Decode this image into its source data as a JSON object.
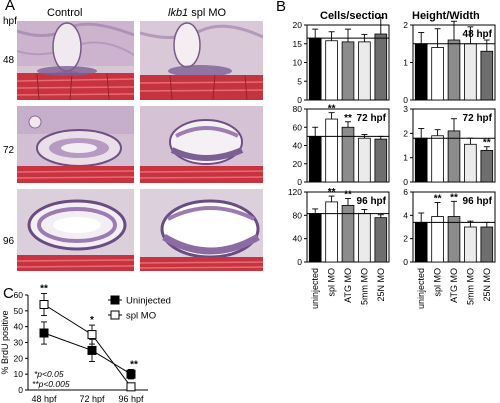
{
  "panel_a": {
    "letter": "A",
    "col_control": "Control",
    "col_mo_gene": "lkb1",
    "col_mo_rest": "spl MO",
    "row_unit": "hpf",
    "rows": [
      "48",
      "72",
      "96"
    ]
  },
  "panel_b": {
    "letter": "B",
    "col_left_title": "Cells/section",
    "col_right_title": "Height/Width",
    "categories": [
      "uninjected",
      "spl MO",
      "ATG MO",
      "5mm MO",
      "25N MO"
    ]
  },
  "panel_c": {
    "letter": "C",
    "notes": [
      "*p<0.05",
      "**p<0.005"
    ]
  },
  "chart_data": [
    {
      "type": "bar",
      "panel": "B",
      "label": "",
      "categories": [
        "uninjected",
        "spl MO",
        "ATG MO",
        "5mm MO",
        "25N MO"
      ],
      "values": [
        16.5,
        15.8,
        15.5,
        15.5,
        17.6
      ],
      "errors": [
        2.4,
        2.4,
        3.4,
        2.0,
        4.4
      ],
      "stars": [
        "",
        "",
        "",
        "",
        ""
      ],
      "ylim": [
        0,
        20
      ],
      "yticks": [
        0,
        5,
        10,
        15,
        20
      ],
      "baseline": 16.5,
      "grid": false
    },
    {
      "type": "bar",
      "panel": "B",
      "label": "48 hpf",
      "categories": [
        "uninjected",
        "spl MO",
        "ATG MO",
        "5mm MO",
        "25N MO"
      ],
      "values": [
        1.5,
        1.4,
        1.6,
        1.5,
        1.3
      ],
      "errors": [
        0.3,
        0.5,
        0.5,
        0.45,
        0.3
      ],
      "stars": [
        "",
        "",
        "",
        "",
        ""
      ],
      "ylim": [
        0,
        2
      ],
      "yticks": [
        0,
        1,
        2
      ],
      "baseline": 1.5,
      "grid": false
    },
    {
      "type": "bar",
      "panel": "B",
      "label": "72 hpf",
      "categories": [
        "uninjected",
        "spl MO",
        "ATG MO",
        "5mm MO",
        "25N MO"
      ],
      "values": [
        50,
        69,
        60,
        48,
        47
      ],
      "errors": [
        10,
        7,
        6,
        4,
        3
      ],
      "stars": [
        "",
        "**",
        "**",
        "",
        ""
      ],
      "ylim": [
        0,
        80
      ],
      "yticks": [
        0,
        20,
        40,
        60,
        80
      ],
      "baseline": 50,
      "grid": false
    },
    {
      "type": "bar",
      "panel": "B",
      "label": "72 hpf",
      "categories": [
        "uninjected",
        "spl MO",
        "ATG MO",
        "5mm MO",
        "25N MO"
      ],
      "values": [
        1.8,
        1.9,
        2.1,
        1.55,
        1.3
      ],
      "errors": [
        0.4,
        0.25,
        0.5,
        0.25,
        0.15
      ],
      "stars": [
        "",
        "",
        "",
        "",
        "**"
      ],
      "ylim": [
        0,
        3
      ],
      "yticks": [
        0,
        1,
        2,
        3
      ],
      "baseline": 1.8,
      "grid": false
    },
    {
      "type": "bar",
      "panel": "B",
      "label": "96 hpf",
      "categories": [
        "uninjected",
        "spl MO",
        "ATG MO",
        "5mm MO",
        "25N MO"
      ],
      "values": [
        83,
        103,
        97,
        83,
        76
      ],
      "errors": [
        8,
        10,
        12,
        7,
        5
      ],
      "stars": [
        "",
        "**",
        "**",
        "",
        ""
      ],
      "ylim": [
        0,
        120
      ],
      "yticks": [
        0,
        40,
        80,
        120
      ],
      "baseline": 83,
      "grid": false
    },
    {
      "type": "bar",
      "panel": "B",
      "label": "96 hpf",
      "categories": [
        "uninjected",
        "spl MO",
        "ATG MO",
        "5mm MO",
        "25N MO"
      ],
      "values": [
        3.4,
        3.9,
        3.9,
        3.0,
        3.0
      ],
      "errors": [
        0.8,
        1.2,
        1.3,
        0.5,
        0.4
      ],
      "stars": [
        "",
        "**",
        "**",
        "",
        ""
      ],
      "ylim": [
        0,
        6
      ],
      "yticks": [
        0,
        2,
        4,
        6
      ],
      "baseline": 3.4,
      "grid": false
    },
    {
      "type": "line",
      "panel": "C",
      "categories": [
        "48 hpf",
        "72 hpf",
        "96 hpf"
      ],
      "ylabel": "% BrdU positive",
      "ylim": [
        0,
        60
      ],
      "yticks": [
        0,
        10,
        20,
        30,
        40,
        50,
        60
      ],
      "legend_position": "top-right",
      "series": [
        {
          "name": "Uninjected",
          "values": [
            36,
            25,
            10
          ],
          "errors": [
            7,
            7,
            3
          ],
          "marker": "filled-square"
        },
        {
          "name": "spl MO",
          "values": [
            54,
            35,
            2
          ],
          "errors": [
            7,
            6,
            2
          ],
          "marker": "open-square"
        }
      ],
      "stars": [
        "**",
        "*",
        "**"
      ]
    }
  ]
}
